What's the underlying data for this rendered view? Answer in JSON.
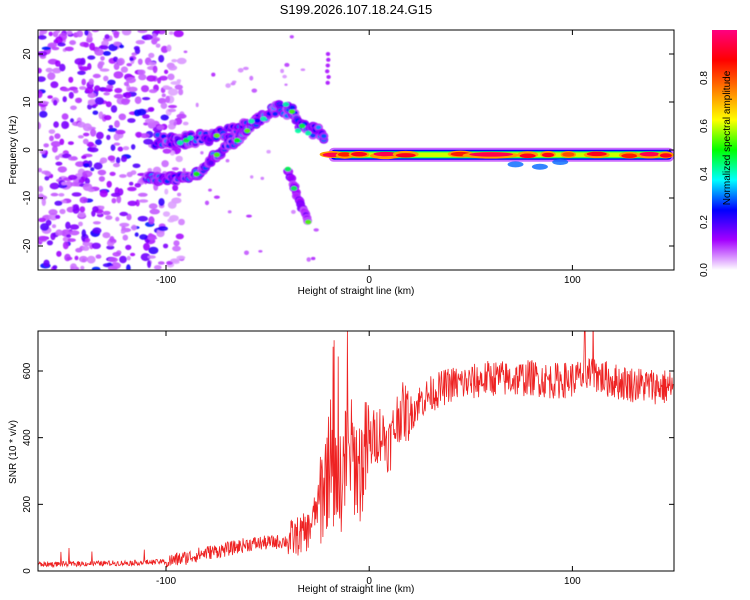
{
  "title": "S199.2026.107.18.24.G15",
  "chart_data": [
    {
      "type": "heatmap",
      "xlabel": "Height of straight line (km)",
      "ylabel": "Frequency (Hz)",
      "xlim": [
        -163,
        150
      ],
      "ylim": [
        -25,
        25
      ],
      "x_ticks": [
        -100,
        0,
        100
      ],
      "y_ticks": [
        -20,
        -10,
        0,
        10,
        20
      ],
      "colorbar": {
        "label": "Normalized spectral amplitude",
        "range": [
          0,
          1
        ],
        "ticks": [
          0.0,
          0.2,
          0.4,
          0.6,
          0.8
        ],
        "tick_labels": [
          "0.0",
          "0.2",
          "0.4",
          "0.6",
          "0.8"
        ],
        "colors": [
          "#ffffff",
          "#a400ff",
          "#0000ff",
          "#00ffff",
          "#00ff00",
          "#ffff00",
          "#ff8000",
          "#ff0000",
          "#ff0080"
        ]
      },
      "features": [
        {
          "name": "noise region",
          "x_range": [
            -163,
            -100
          ],
          "freq_range": [
            -25,
            25
          ],
          "amplitude": 0.1
        },
        {
          "name": "upper branch",
          "points": [
            [
              -105,
              2
            ],
            [
              -90,
              2
            ],
            [
              -75,
              3
            ],
            [
              -65,
              4
            ],
            [
              -55,
              6
            ],
            [
              -45,
              9
            ],
            [
              -38,
              8
            ],
            [
              -33,
              5
            ],
            [
              -28,
              4
            ],
            [
              -22,
              3
            ]
          ],
          "amplitude": 0.3
        },
        {
          "name": "lower rising branch",
          "points": [
            [
              -110,
              -6
            ],
            [
              -95,
              -6
            ],
            [
              -85,
              -5
            ],
            [
              -80,
              -3
            ],
            [
              -75,
              -1
            ],
            [
              -70,
              1
            ],
            [
              -65,
              2
            ],
            [
              -60,
              4
            ],
            [
              -55,
              6
            ]
          ],
          "amplitude": 0.3
        },
        {
          "name": "descending streak",
          "points": [
            [
              -40,
              -4
            ],
            [
              -37,
              -8
            ],
            [
              -33,
              -12
            ],
            [
              -30,
              -15
            ]
          ],
          "amplitude": 0.15
        },
        {
          "name": "main signal",
          "x_range": [
            -20,
            150
          ],
          "frequency": -1,
          "amplitude": 0.95
        }
      ]
    },
    {
      "type": "line",
      "xlabel": "Height of straight line (km)",
      "ylabel": "SNR (10 * v/v)",
      "xlim": [
        -163,
        150
      ],
      "ylim": [
        0,
        720
      ],
      "x_ticks": [
        -100,
        0,
        100
      ],
      "y_ticks": [
        0,
        200,
        400,
        600
      ],
      "color": "#ee2222",
      "x": [
        -163,
        -140,
        -120,
        -100,
        -90,
        -80,
        -70,
        -60,
        -50,
        -40,
        -30,
        -25,
        -20,
        -15,
        -10,
        -5,
        0,
        5,
        10,
        15,
        20,
        25,
        30,
        40,
        50,
        60,
        70,
        80,
        90,
        100,
        110,
        120,
        130,
        140,
        150
      ],
      "values": [
        20,
        22,
        24,
        28,
        40,
        55,
        65,
        80,
        85,
        90,
        120,
        200,
        310,
        250,
        370,
        300,
        380,
        420,
        380,
        480,
        470,
        510,
        530,
        560,
        565,
        580,
        575,
        580,
        570,
        575,
        590,
        570,
        560,
        555,
        550
      ]
    }
  ]
}
